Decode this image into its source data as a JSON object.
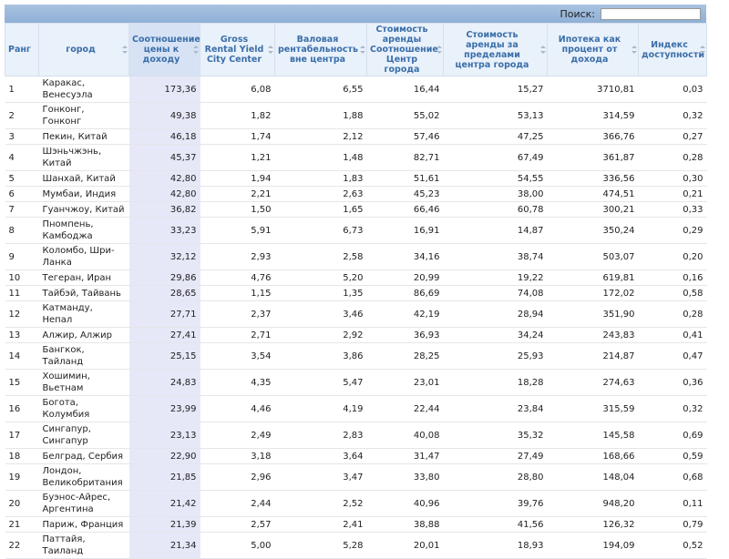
{
  "search": {
    "label": "Поиск:"
  },
  "table": {
    "headers": [
      "Ранг",
      "город",
      "Соотношение цены к доходу",
      "Gross Rental Yield City Center",
      "Валовая рентабельность вне центра",
      "Стоимость аренды Соотношение Центр города",
      "Стоимость аренды за пределами центра города",
      "Ипотека как процент от дохода",
      "Индекс доступности"
    ],
    "rows": [
      [
        "1",
        "Каракас, Венесуэла",
        "173,36",
        "6,08",
        "6,55",
        "16,44",
        "15,27",
        "3710,81",
        "0,03"
      ],
      [
        "2",
        "Гонконг, Гонконг",
        "49,38",
        "1,82",
        "1,88",
        "55,02",
        "53,13",
        "314,59",
        "0,32"
      ],
      [
        "3",
        "Пекин, Китай",
        "46,18",
        "1,74",
        "2,12",
        "57,46",
        "47,25",
        "366,76",
        "0,27"
      ],
      [
        "4",
        "Шэньчжэнь, Китай",
        "45,37",
        "1,21",
        "1,48",
        "82,71",
        "67,49",
        "361,87",
        "0,28"
      ],
      [
        "5",
        "Шанхай, Китай",
        "42,80",
        "1,94",
        "1,83",
        "51,61",
        "54,55",
        "336,56",
        "0,30"
      ],
      [
        "6",
        "Мумбаи, Индия",
        "42,80",
        "2,21",
        "2,63",
        "45,23",
        "38,00",
        "474,51",
        "0,21"
      ],
      [
        "7",
        "Гуанчжоу, Китай",
        "36,82",
        "1,50",
        "1,65",
        "66,46",
        "60,78",
        "300,21",
        "0,33"
      ],
      [
        "8",
        "Пномпень, Камбоджа",
        "33,23",
        "5,91",
        "6,73",
        "16,91",
        "14,87",
        "350,24",
        "0,29"
      ],
      [
        "9",
        "Коломбо, Шри-Ланка",
        "32,12",
        "2,93",
        "2,58",
        "34,16",
        "38,74",
        "503,07",
        "0,20"
      ],
      [
        "10",
        "Тегеран, Иран",
        "29,86",
        "4,76",
        "5,20",
        "20,99",
        "19,22",
        "619,81",
        "0,16"
      ],
      [
        "11",
        "Тайбэй, Тайвань",
        "28,65",
        "1,15",
        "1,35",
        "86,69",
        "74,08",
        "172,02",
        "0,58"
      ],
      [
        "12",
        "Катманду, Непал",
        "27,71",
        "2,37",
        "3,46",
        "42,19",
        "28,94",
        "351,90",
        "0,28"
      ],
      [
        "13",
        "Алжир, Алжир",
        "27,41",
        "2,71",
        "2,92",
        "36,93",
        "34,24",
        "243,83",
        "0,41"
      ],
      [
        "14",
        "Бангкок, Тайланд",
        "25,15",
        "3,54",
        "3,86",
        "28,25",
        "25,93",
        "214,87",
        "0,47"
      ],
      [
        "15",
        "Хошимин, Вьетнам",
        "24,83",
        "4,35",
        "5,47",
        "23,01",
        "18,28",
        "274,63",
        "0,36"
      ],
      [
        "16",
        "Богота, Колумбия",
        "23,99",
        "4,46",
        "4,19",
        "22,44",
        "23,84",
        "315,59",
        "0,32"
      ],
      [
        "17",
        "Сингапур, Сингапур",
        "23,13",
        "2,49",
        "2,83",
        "40,08",
        "35,32",
        "145,58",
        "0,69"
      ],
      [
        "18",
        "Белград, Сербия",
        "22,90",
        "3,18",
        "3,64",
        "31,47",
        "27,49",
        "168,66",
        "0,59"
      ],
      [
        "19",
        "Лондон, Великобритания",
        "21,85",
        "2,96",
        "3,47",
        "33,80",
        "28,80",
        "148,04",
        "0,68"
      ],
      [
        "20",
        "Буэнос-Айрес, Аргентина",
        "21,42",
        "2,44",
        "2,52",
        "40,96",
        "39,76",
        "948,20",
        "0,11"
      ],
      [
        "21",
        "Париж, Франция",
        "21,39",
        "2,57",
        "2,41",
        "38,88",
        "41,56",
        "126,32",
        "0,79"
      ],
      [
        "22",
        "Паттайя, Таиланд",
        "21,34",
        "5,00",
        "5,28",
        "20,01",
        "18,93",
        "194,09",
        "0,52"
      ]
    ]
  }
}
